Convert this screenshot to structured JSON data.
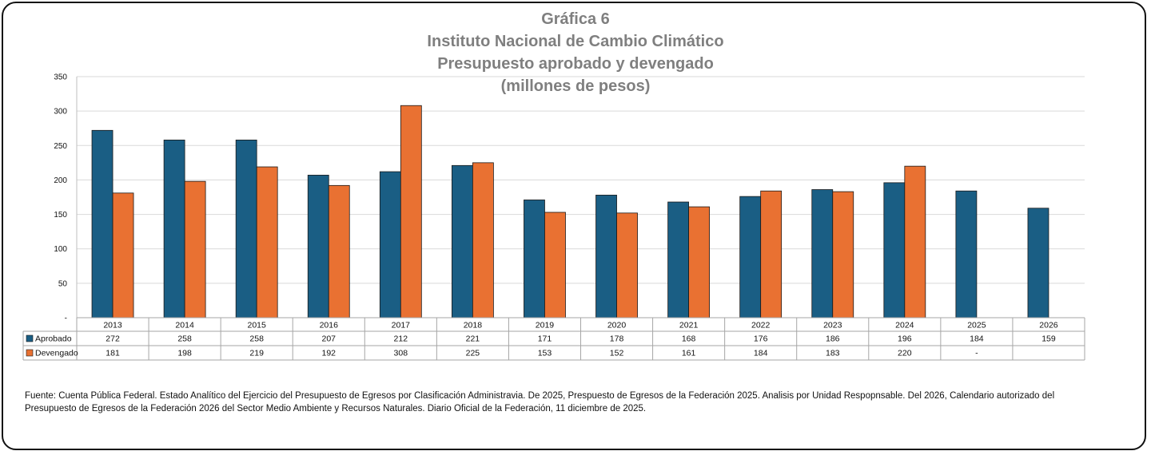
{
  "chart_data": {
    "type": "bar",
    "title_lines": [
      "Gráfica 6",
      "Instituto Nacional de Cambio Climático",
      "Presupuesto aprobado y devengado",
      "(millones de pesos)"
    ],
    "categories": [
      "2013",
      "2014",
      "2015",
      "2016",
      "2017",
      "2018",
      "2019",
      "2020",
      "2021",
      "2022",
      "2023",
      "2024",
      "2025",
      "2026"
    ],
    "series": [
      {
        "name": "Aprobado",
        "color": "#1a5e84",
        "values": [
          272,
          258,
          258,
          207,
          212,
          221,
          171,
          178,
          168,
          176,
          186,
          196,
          184,
          159
        ],
        "labels": [
          "272",
          "258",
          "258",
          "207",
          "212",
          "221",
          "171",
          "178",
          "168",
          "176",
          "186",
          "196",
          "184",
          "159"
        ]
      },
      {
        "name": "Devengado",
        "color": "#e97132",
        "values": [
          181,
          198,
          219,
          192,
          308,
          225,
          153,
          152,
          161,
          184,
          183,
          220,
          null,
          null
        ],
        "labels": [
          "181",
          "198",
          "219",
          "192",
          "308",
          "225",
          "153",
          "152",
          "161",
          "184",
          "183",
          "220",
          "-",
          ""
        ]
      }
    ],
    "y_ticks": [
      0,
      50,
      100,
      150,
      200,
      250,
      300,
      350
    ],
    "y_tick_labels": [
      "-",
      "50",
      "100",
      "150",
      "200",
      "250",
      "300",
      "350"
    ],
    "ylim": [
      0,
      350
    ],
    "grid": true,
    "legend": "data table below chart"
  },
  "source_note": "Fuente:  Cuenta Pública Federal. Estado Analítico del Ejercicio del Presupuesto de Egresos por Clasificación Administravia. De 2025, Prespuesto de Egresos de la Federación 2025. Analisis por Unidad Respopnsable. Del 2026, Calendario autorizado del Presupuesto de Egresos de la Federación 2026 del Sector Medio Ambiente y Recursos Naturales. Diario Oficial de la Federación, 11 diciembre de 2025."
}
